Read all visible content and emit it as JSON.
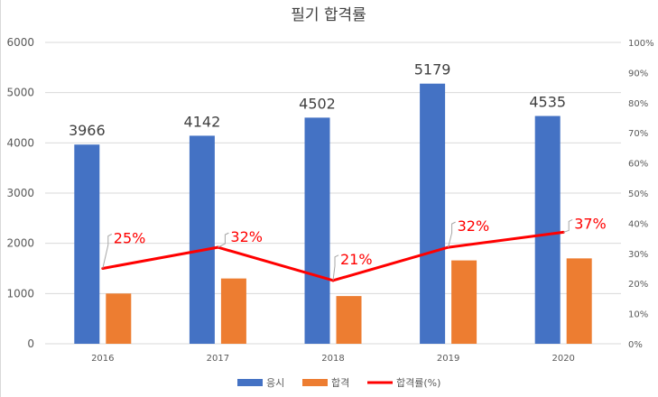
{
  "chart_data": {
    "type": "bar",
    "title": "필기 합격률",
    "categories": [
      "2016",
      "2017",
      "2018",
      "2019",
      "2020"
    ],
    "series": [
      {
        "name": "응시",
        "kind": "bar",
        "axis": "left",
        "color": "#4472c4",
        "values": [
          3966,
          4142,
          4502,
          5179,
          4535
        ]
      },
      {
        "name": "합격",
        "kind": "bar",
        "axis": "left",
        "color": "#ed7d31",
        "values": [
          1000,
          1300,
          950,
          1660,
          1700
        ]
      },
      {
        "name": "합격률(%)",
        "kind": "line",
        "axis": "right",
        "color": "#ff0000",
        "values": [
          25,
          32,
          21,
          32,
          37
        ]
      }
    ],
    "ylim": [
      0,
      6000
    ],
    "yticks": [
      0,
      1000,
      2000,
      3000,
      4000,
      5000,
      6000
    ],
    "y2lim": [
      0,
      100
    ],
    "y2ticks": [
      0,
      10,
      20,
      30,
      40,
      50,
      60,
      70,
      80,
      90,
      100
    ],
    "y2tick_suffix": "%",
    "rate_label_suffix": "%",
    "grid": true,
    "legend": "bottom"
  }
}
